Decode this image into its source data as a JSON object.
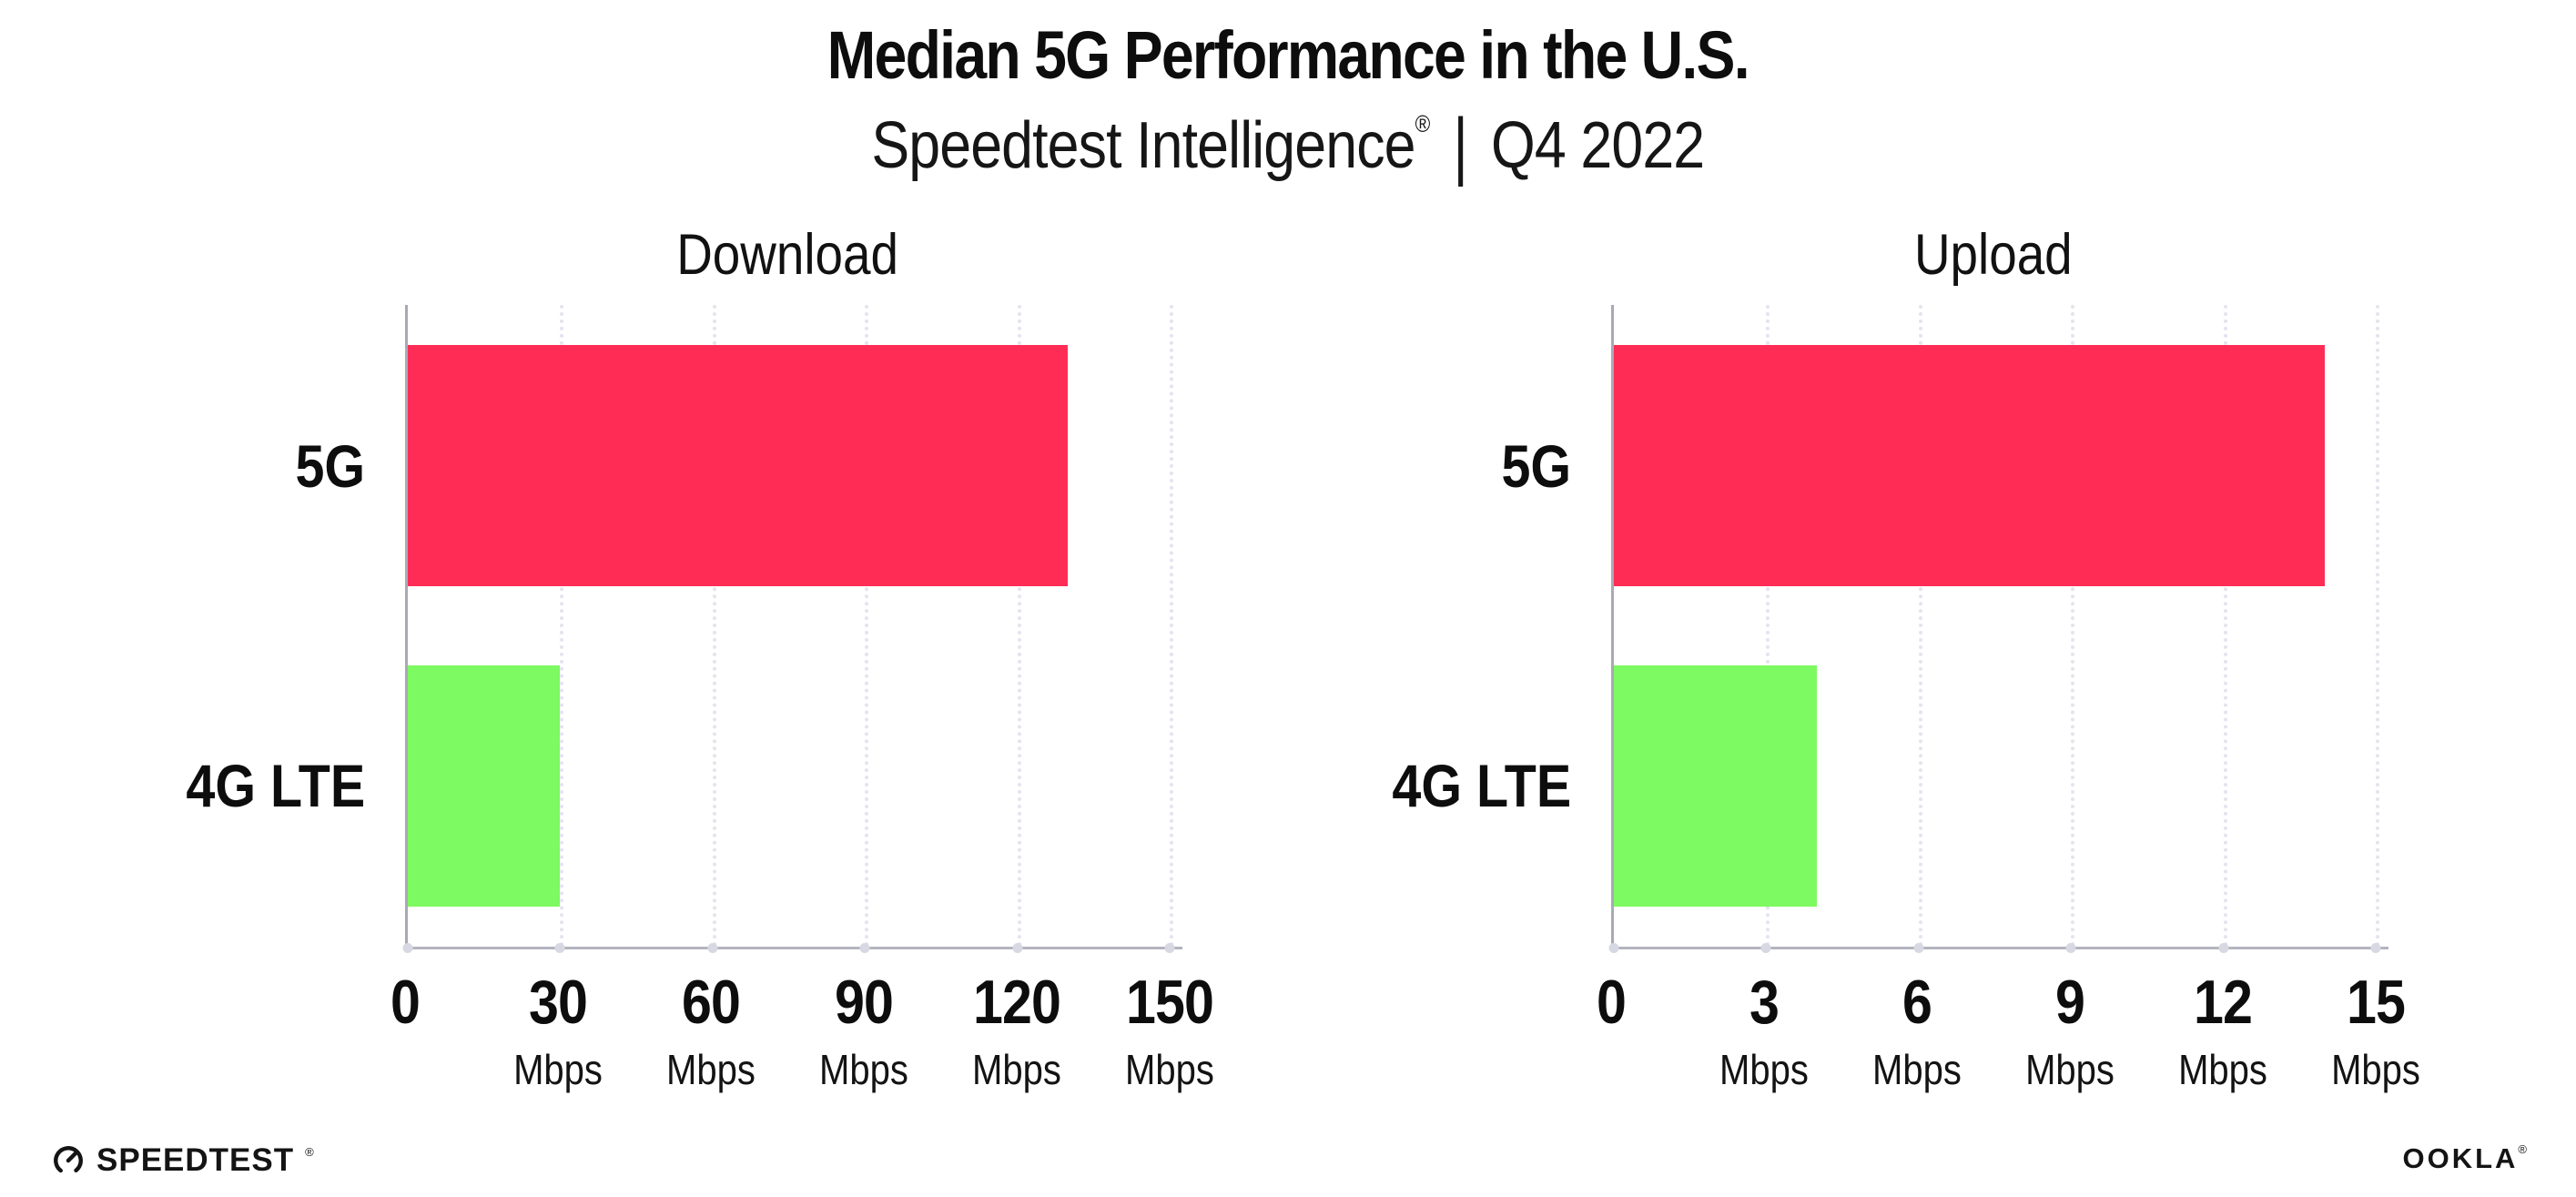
{
  "header": {
    "title": "Median 5G Performance in the U.S.",
    "subtitle_brand": "Speedtest Intelligence",
    "subtitle_reg": "®",
    "subtitle_separator": "|",
    "subtitle_period": "Q4 2022"
  },
  "chart_data": [
    {
      "type": "bar",
      "orientation": "horizontal",
      "title": "Download",
      "categories": [
        "5G",
        "4G LTE"
      ],
      "values": [
        130,
        30
      ],
      "unit": "Mbps",
      "xlim": [
        0,
        150
      ],
      "xticks": [
        0,
        30,
        60,
        90,
        120,
        150
      ],
      "bar_colors": [
        "#FF2D55",
        "#7DF961"
      ],
      "grid": "vertical-dotted",
      "legend": "none"
    },
    {
      "type": "bar",
      "orientation": "horizontal",
      "title": "Upload",
      "categories": [
        "5G",
        "4G LTE"
      ],
      "values": [
        14,
        4
      ],
      "unit": "Mbps",
      "xlim": [
        0,
        15
      ],
      "xticks": [
        0,
        3,
        6,
        9,
        12,
        15
      ],
      "bar_colors": [
        "#FF2D55",
        "#7DF961"
      ],
      "grid": "vertical-dotted",
      "legend": "none"
    }
  ],
  "footer": {
    "speedtest_label": "SPEEDTEST",
    "speedtest_reg": "®",
    "ookla_label": "OOKLA",
    "ookla_reg": "®"
  }
}
